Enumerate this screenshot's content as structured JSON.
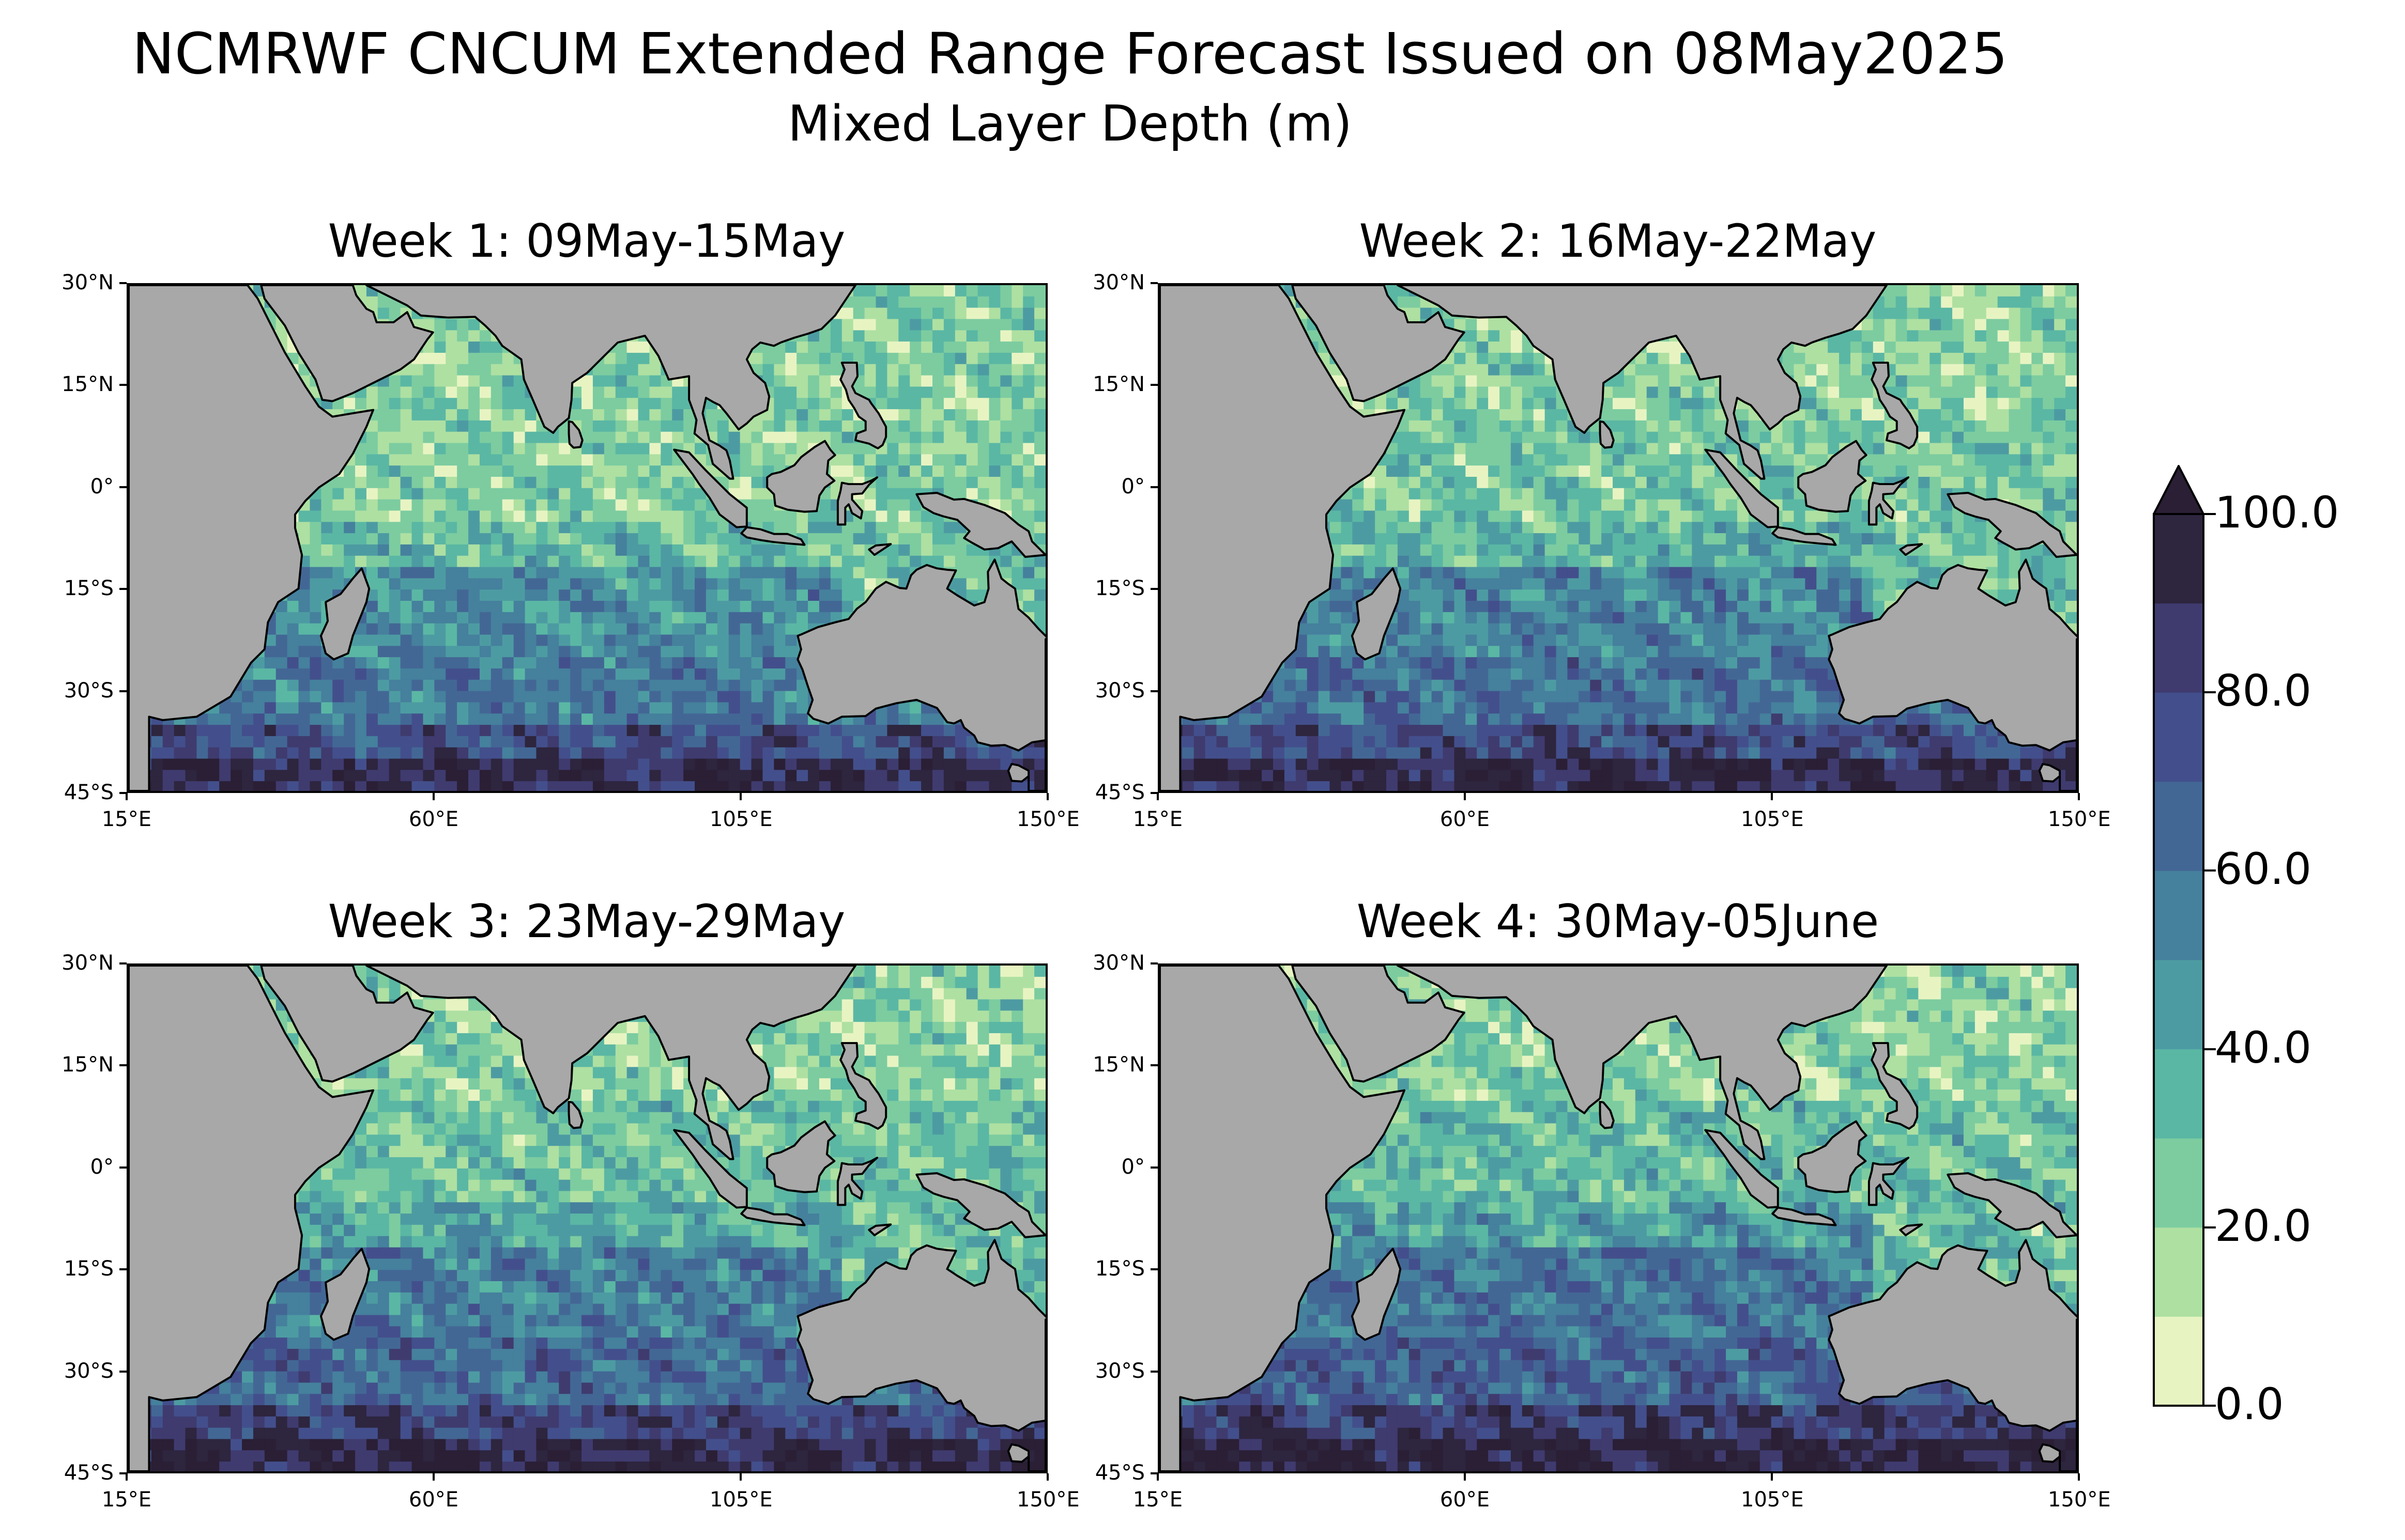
{
  "header": {
    "title": "NCMRWF CNCUM Extended Range Forecast Issued on 08May2025",
    "subtitle": "Mixed Layer Depth (m)"
  },
  "panels": [
    {
      "title": "Week 1: 09May-15May",
      "tint": "#4f90a0"
    },
    {
      "title": "Week 2: 16May-22May",
      "tint": "#4a85a0"
    },
    {
      "title": "Week 3: 23May-29May",
      "tint": "#46789c"
    },
    {
      "title": "Week 4: 30May-05June",
      "tint": "#48709a"
    }
  ],
  "axes": {
    "lat_labels": [
      "30°N",
      "15°N",
      "0°",
      "15°S",
      "30°S",
      "45°S"
    ],
    "lon_labels": [
      "15°E",
      "60°E",
      "105°E",
      "150°E"
    ],
    "lat_values": [
      30,
      15,
      0,
      -15,
      -30,
      -45
    ],
    "lon_values": [
      15,
      60,
      105,
      150
    ],
    "lat_range": [
      -45,
      30
    ],
    "lon_range": [
      15,
      150
    ]
  },
  "colorbar": {
    "min": 0,
    "max": 100,
    "extend": "max",
    "tick_labels": [
      "0.0",
      "20.0",
      "40.0",
      "60.0",
      "80.0",
      "100.0"
    ],
    "tick_values": [
      0,
      20,
      40,
      60,
      80,
      100
    ],
    "levels": [
      0,
      10,
      20,
      30,
      40,
      50,
      60,
      70,
      80,
      90,
      100
    ],
    "colors": [
      "#e7f4c2",
      "#aee0a2",
      "#7ccca0",
      "#5ab7a4",
      "#4d9ba2",
      "#45809d",
      "#436795",
      "#434f8c",
      "#3f3b6f",
      "#2e253f"
    ],
    "extend_color": "#2a1f35"
  },
  "colors": {
    "land": "#a8a8a8",
    "coast": "#000000"
  }
}
